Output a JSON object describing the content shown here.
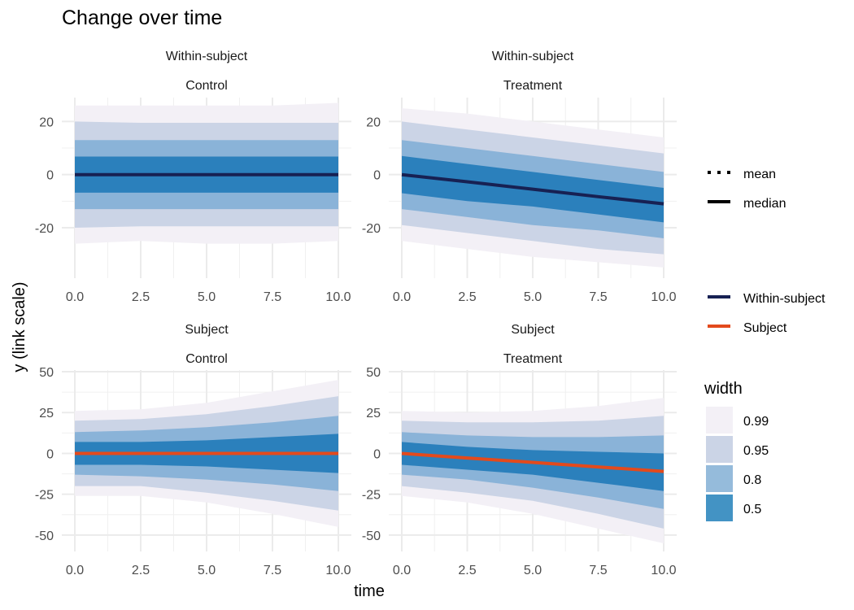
{
  "chart_data": {
    "type": "line",
    "title": "Change over time",
    "xlabel": "time",
    "ylabel": "y (link scale)",
    "grid": true,
    "legend": {
      "linetype": {
        "entries": [
          "mean",
          "median"
        ]
      },
      "color": {
        "entries": [
          {
            "name": "Within-subject",
            "color": "#172153"
          },
          {
            "name": "Subject",
            "color": "#e34a1c"
          }
        ]
      },
      "width": {
        "title": "width",
        "entries": [
          {
            "label": "0.99",
            "color": "#f3f0f6"
          },
          {
            "label": "0.95",
            "color": "#cbd4e6"
          },
          {
            "label": "0.8",
            "color": "#95bbdb"
          },
          {
            "label": "0.5",
            "color": "#4393c4"
          }
        ]
      },
      "placement": "right"
    },
    "band_colors": {
      "0.99": "#f3f0f6",
      "0.95": "#cbd4e6",
      "0.8": "#8ab3d8",
      "0.5": "#2b80bc"
    },
    "panels": [
      {
        "strip_top": "Within-subject",
        "strip_bottom": "Control",
        "xlim": [
          0,
          10
        ],
        "ylim": [
          -39,
          29
        ],
        "xticks": [
          "0.0",
          "2.5",
          "5.0",
          "7.5",
          "10.0"
        ],
        "yticks": [
          -20,
          0,
          20
        ],
        "line_series": "Within-subject",
        "x": [
          0,
          2.5,
          5,
          7.5,
          10
        ],
        "median": [
          0,
          0,
          0,
          0,
          0
        ],
        "bands": {
          "0.99": {
            "lower": [
              -26,
              -25,
              -26,
              -26,
              -25
            ],
            "upper": [
              26,
              26,
              26,
              26,
              27
            ]
          },
          "0.95": {
            "lower": [
              -20,
              -19.5,
              -19.5,
              -19.5,
              -19.5
            ],
            "upper": [
              20,
              19.5,
              19.5,
              19.5,
              19.5
            ]
          },
          "0.8": {
            "lower": [
              -13,
              -13,
              -13,
              -13,
              -13
            ],
            "upper": [
              13,
              13,
              13,
              13,
              13
            ]
          },
          "0.5": {
            "lower": [
              -6.8,
              -6.8,
              -6.8,
              -6.8,
              -6.8
            ],
            "upper": [
              6.8,
              6.8,
              6.8,
              6.8,
              6.8
            ]
          }
        }
      },
      {
        "strip_top": "Within-subject",
        "strip_bottom": "Treatment",
        "xlim": [
          0,
          10
        ],
        "ylim": [
          -39,
          29
        ],
        "xticks": [
          "0.0",
          "2.5",
          "5.0",
          "7.5",
          "10.0"
        ],
        "yticks": [
          -20,
          0,
          20
        ],
        "line_series": "Within-subject",
        "x": [
          0,
          2.5,
          5,
          7.5,
          10
        ],
        "median": [
          0,
          -2.7,
          -5.5,
          -8.3,
          -11
        ],
        "bands": {
          "0.99": {
            "lower": [
              -25,
              -28,
              -31,
              -33,
              -35
            ],
            "upper": [
              25,
              23,
              20,
              17,
              14
            ]
          },
          "0.95": {
            "lower": [
              -19,
              -22,
              -25,
              -28,
              -30
            ],
            "upper": [
              20,
              17,
              14,
              11,
              8
            ]
          },
          "0.8": {
            "lower": [
              -13,
              -16,
              -19,
              -21,
              -24
            ],
            "upper": [
              13,
              10,
              7,
              4,
              1
            ]
          },
          "0.5": {
            "lower": [
              -7,
              -10,
              -12,
              -15,
              -18
            ],
            "upper": [
              7,
              4,
              1,
              -2,
              -5
            ]
          }
        }
      },
      {
        "strip_top": "Subject",
        "strip_bottom": "Control",
        "xlim": [
          0,
          10
        ],
        "ylim": [
          -60,
          51
        ],
        "xticks": [
          "0.0",
          "2.5",
          "5.0",
          "7.5",
          "10.0"
        ],
        "yticks": [
          -50,
          -25,
          0,
          25,
          50
        ],
        "line_series": "Subject",
        "x": [
          0,
          2.5,
          5,
          7.5,
          10
        ],
        "median": [
          0,
          0,
          0,
          0,
          0
        ],
        "bands": {
          "0.99": {
            "lower": [
              -26,
              -26,
              -30,
              -37,
              -45
            ],
            "upper": [
              26,
              27,
              31,
              38,
              45
            ]
          },
          "0.95": {
            "lower": [
              -20,
              -20,
              -24,
              -29,
              -35
            ],
            "upper": [
              20,
              21,
              24,
              29,
              35
            ]
          },
          "0.8": {
            "lower": [
              -13,
              -14,
              -16,
              -19,
              -23
            ],
            "upper": [
              13,
              14,
              16,
              19,
              23
            ]
          },
          "0.5": {
            "lower": [
              -7,
              -7,
              -8,
              -10,
              -12
            ],
            "upper": [
              7,
              7,
              8,
              10,
              12
            ]
          }
        }
      },
      {
        "strip_top": "Subject",
        "strip_bottom": "Treatment",
        "xlim": [
          0,
          10
        ],
        "ylim": [
          -60,
          51
        ],
        "xticks": [
          "0.0",
          "2.5",
          "5.0",
          "7.5",
          "10.0"
        ],
        "yticks": [
          -50,
          -25,
          0,
          25,
          50
        ],
        "line_series": "Subject",
        "x": [
          0,
          2.5,
          5,
          7.5,
          10
        ],
        "median": [
          0,
          -2.8,
          -5.5,
          -8.3,
          -11
        ],
        "bands": {
          "0.99": {
            "lower": [
              -26,
              -30,
              -37,
              -46,
              -55
            ],
            "upper": [
              26,
              25,
              26,
              29,
              34
            ]
          },
          "0.95": {
            "lower": [
              -20,
              -24,
              -29,
              -37,
              -46
            ],
            "upper": [
              20,
              19,
              19,
              20,
              23
            ]
          },
          "0.8": {
            "lower": [
              -13,
              -16,
              -21,
              -27,
              -34
            ],
            "upper": [
              13,
              11,
              10,
              10,
              11
            ]
          },
          "0.5": {
            "lower": [
              -7,
              -10,
              -13,
              -18,
              -23
            ],
            "upper": [
              7,
              4,
              2,
              1,
              0
            ]
          }
        }
      }
    ]
  }
}
